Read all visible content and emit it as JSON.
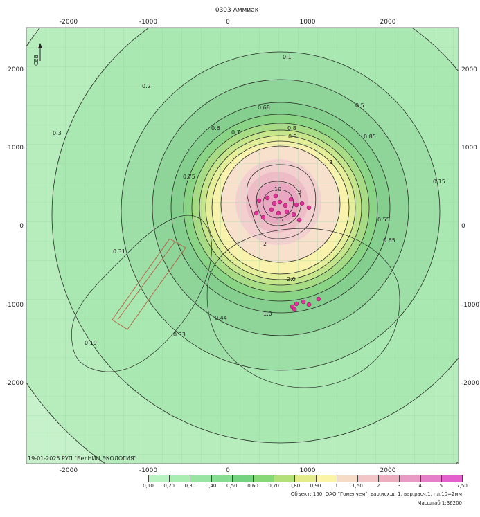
{
  "map": {
    "title": "0303 Аммиак",
    "x_ticks": [
      "-2000",
      "-1000",
      "0",
      "1000",
      "2000"
    ],
    "y_ticks": [
      "2000",
      "1000",
      "0",
      "-1000",
      "-2000"
    ],
    "bottom_note": "19-01-2025 РУП \"БелНИЦ ЭКОЛОГИЯ\"",
    "north_label": "СЕВ",
    "isoline_labels": [
      "0.1",
      "0.2",
      "0.3",
      "0.5",
      "0.6",
      "0.68",
      "0.7",
      "0.8",
      "0.9",
      "1",
      "2",
      "3",
      "5",
      "10",
      "0.15",
      "0.19",
      "0.31",
      "0.33",
      "0.44",
      "0.55",
      "0.65",
      "0.75",
      "0.85",
      "2.0",
      "1.0"
    ]
  },
  "legend": {
    "values": [
      "0,10",
      "0,20",
      "0,30",
      "0,40",
      "0,50",
      "0,60",
      "0,70",
      "0,80",
      "0,90",
      "1",
      "1,50",
      "2",
      "3",
      "4",
      "5",
      "7,50"
    ],
    "colors": [
      "#b9f3c2",
      "#a9edb3",
      "#98e5a3",
      "#86dc91",
      "#74d37e",
      "#86d775",
      "#b4e07a",
      "#e3ec88",
      "#fbf4a6",
      "#f6dcc6",
      "#f2c5c6",
      "#ecaebe",
      "#e99bc5",
      "#e67fc8",
      "#e461cd"
    ]
  },
  "footer": {
    "object_text": "Объект: 150, ОАО \"Гомелчем\", вар.исх.д. 1, вар.расч.1, пл.10=2мм",
    "scale_text": "Масштаб 1:36200"
  }
}
